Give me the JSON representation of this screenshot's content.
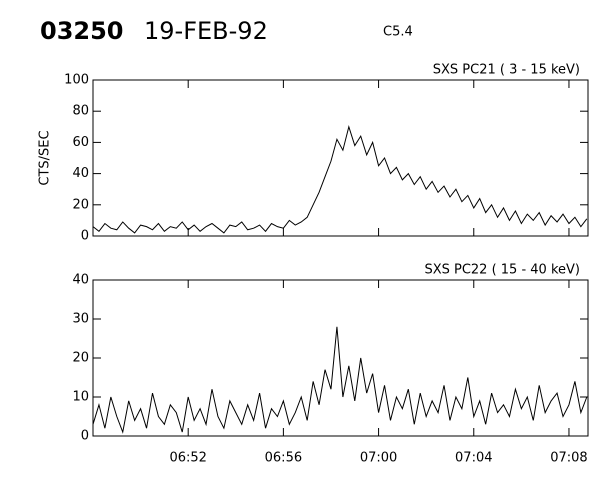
{
  "header": {
    "id": "03250",
    "date": "19-FEB-92",
    "class": "C5.4"
  },
  "chart_data": [
    {
      "type": "line",
      "title": "SXS PC21  (  3 - 15 keV)",
      "ylabel": "CTS/SEC",
      "x": [
        408,
        408.25,
        408.5,
        408.75,
        409,
        409.25,
        409.5,
        409.75,
        410,
        410.25,
        410.5,
        410.75,
        411,
        411.25,
        411.5,
        411.75,
        412,
        412.25,
        412.5,
        412.75,
        413,
        413.25,
        413.5,
        413.75,
        414,
        414.25,
        414.5,
        414.75,
        415,
        415.25,
        415.5,
        415.75,
        416,
        416.25,
        416.5,
        416.75,
        417,
        417.25,
        417.5,
        417.75,
        418,
        418.25,
        418.5,
        418.75,
        419,
        419.25,
        419.5,
        419.75,
        420,
        420.25,
        420.5,
        420.75,
        421,
        421.25,
        421.5,
        421.75,
        422,
        422.25,
        422.5,
        422.75,
        423,
        423.25,
        423.5,
        423.75,
        424,
        424.25,
        424.5,
        424.75,
        425,
        425.25,
        425.5,
        425.75,
        426,
        426.25,
        426.5,
        426.75,
        427,
        427.25,
        427.5,
        427.75,
        428,
        428.25,
        428.5,
        428.75
      ],
      "series": [
        {
          "color": "#000000",
          "values": [
            6,
            3,
            8,
            5,
            4,
            9,
            5,
            2,
            7,
            6,
            4,
            8,
            3,
            6,
            5,
            9,
            4,
            7,
            3,
            6,
            8,
            5,
            2,
            7,
            6,
            9,
            4,
            5,
            7,
            3,
            8,
            6,
            5,
            10,
            7,
            9,
            12,
            20,
            28,
            38,
            48,
            62,
            55,
            70,
            58,
            64,
            52,
            60,
            45,
            50,
            40,
            44,
            36,
            40,
            33,
            38,
            30,
            35,
            28,
            32,
            25,
            30,
            22,
            26,
            18,
            24,
            15,
            20,
            12,
            18,
            10,
            16,
            8,
            14,
            10,
            15,
            7,
            13,
            9,
            14,
            8,
            12,
            6,
            11
          ]
        }
      ],
      "xlim": [
        408,
        428.8
      ],
      "xticks": [
        412,
        416,
        420,
        424,
        428
      ],
      "ylim": [
        0,
        100
      ],
      "yticks": [
        0,
        20,
        40,
        60,
        80,
        100
      ]
    },
    {
      "type": "line",
      "title": "SXS PC22  ( 15 - 40 keV)",
      "x": [
        408,
        408.25,
        408.5,
        408.75,
        409,
        409.25,
        409.5,
        409.75,
        410,
        410.25,
        410.5,
        410.75,
        411,
        411.25,
        411.5,
        411.75,
        412,
        412.25,
        412.5,
        412.75,
        413,
        413.25,
        413.5,
        413.75,
        414,
        414.25,
        414.5,
        414.75,
        415,
        415.25,
        415.5,
        415.75,
        416,
        416.25,
        416.5,
        416.75,
        417,
        417.25,
        417.5,
        417.75,
        418,
        418.25,
        418.5,
        418.75,
        419,
        419.25,
        419.5,
        419.75,
        420,
        420.25,
        420.5,
        420.75,
        421,
        421.25,
        421.5,
        421.75,
        422,
        422.25,
        422.5,
        422.75,
        423,
        423.25,
        423.5,
        423.75,
        424,
        424.25,
        424.5,
        424.75,
        425,
        425.25,
        425.5,
        425.75,
        426,
        426.25,
        426.5,
        426.75,
        427,
        427.25,
        427.5,
        427.75,
        428,
        428.25,
        428.5,
        428.75
      ],
      "series": [
        {
          "color": "#000000",
          "values": [
            3,
            8,
            2,
            10,
            5,
            1,
            9,
            4,
            7,
            2,
            11,
            5,
            3,
            8,
            6,
            1,
            10,
            4,
            7,
            3,
            12,
            5,
            2,
            9,
            6,
            3,
            8,
            4,
            11,
            2,
            7,
            5,
            9,
            3,
            6,
            10,
            4,
            14,
            8,
            17,
            12,
            28,
            10,
            18,
            9,
            20,
            11,
            16,
            6,
            13,
            4,
            10,
            7,
            12,
            3,
            11,
            5,
            9,
            6,
            13,
            4,
            10,
            7,
            15,
            5,
            9,
            3,
            11,
            6,
            8,
            5,
            12,
            7,
            10,
            4,
            13,
            6,
            9,
            11,
            5,
            8,
            14,
            6,
            10
          ]
        }
      ],
      "xlim": [
        408,
        428.8
      ],
      "xticks": [
        {
          "value": 412,
          "label": "06:52"
        },
        {
          "value": 416,
          "label": "06:56"
        },
        {
          "value": 420,
          "label": "07:00"
        },
        {
          "value": 424,
          "label": "07:04"
        },
        {
          "value": 428,
          "label": "07:08"
        }
      ],
      "ylim": [
        0,
        40
      ],
      "yticks": [
        0,
        10,
        20,
        30,
        40
      ]
    }
  ]
}
